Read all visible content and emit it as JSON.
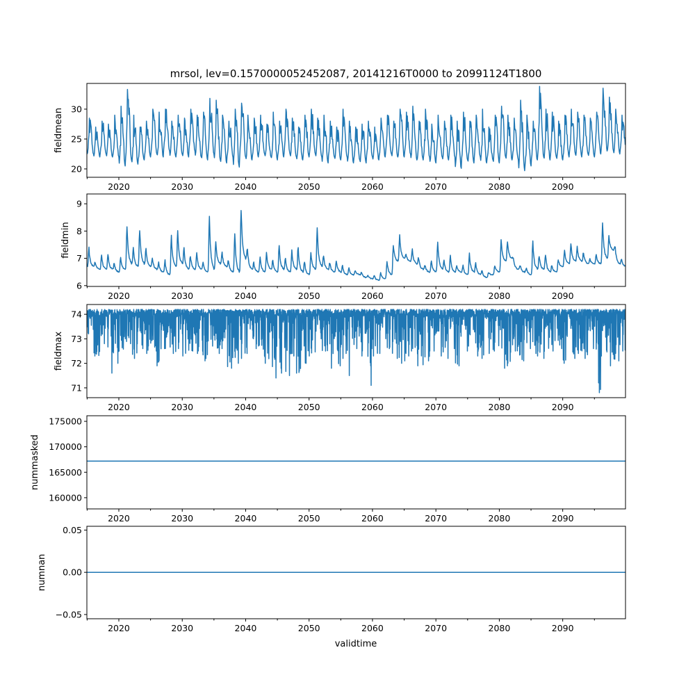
{
  "chart_data": {
    "type": "line",
    "title": "mrsol, lev=0.1570000052452087, 20141216T0000 to 20991124T1800",
    "xlabel": "validtime",
    "xlim": [
      2014.96,
      2099.9
    ],
    "x_ticks": [
      "2020",
      "2030",
      "2040",
      "2050",
      "2060",
      "2070",
      "2080",
      "2090"
    ],
    "x_tick_values": [
      2020,
      2030,
      2040,
      2050,
      2060,
      2070,
      2080,
      2090
    ],
    "x_minor_tick_values": [
      2015,
      2025,
      2035,
      2045,
      2055,
      2065,
      2075,
      2085,
      2095
    ],
    "series_color": "#1f77b4",
    "panels": [
      {
        "name": "fieldmean",
        "ylabel": "fieldmean",
        "ylim": [
          18.6,
          34.3
        ],
        "y_ticks": [
          "20",
          "25",
          "30"
        ],
        "y_tick_values": [
          20,
          25,
          30
        ],
        "note": "annual [peak, trough] values, 2015-2099",
        "start_year": 2015,
        "annual_peak_trough": [
          [
            28.5,
            22.5
          ],
          [
            27,
            22
          ],
          [
            28,
            22.5
          ],
          [
            27.5,
            22
          ],
          [
            29,
            22
          ],
          [
            30.5,
            20.5
          ],
          [
            33.3,
            21.5
          ],
          [
            29,
            20.8
          ],
          [
            27,
            21.5
          ],
          [
            28,
            22
          ],
          [
            30,
            22.5
          ],
          [
            29.5,
            22
          ],
          [
            30,
            23
          ],
          [
            28,
            22
          ],
          [
            29,
            22.5
          ],
          [
            28.5,
            22
          ],
          [
            30,
            23
          ],
          [
            29,
            22
          ],
          [
            29.5,
            21.5
          ],
          [
            31.8,
            22.5
          ],
          [
            31.5,
            21.5
          ],
          [
            29,
            21
          ],
          [
            28,
            22
          ],
          [
            30,
            20.3
          ],
          [
            31,
            22
          ],
          [
            29,
            21.5
          ],
          [
            28.5,
            22
          ],
          [
            29,
            22.5
          ],
          [
            27.5,
            22
          ],
          [
            29.5,
            21.5
          ],
          [
            28,
            22
          ],
          [
            30,
            22.5
          ],
          [
            28.5,
            22
          ],
          [
            27,
            21.5
          ],
          [
            29,
            22
          ],
          [
            30,
            22.5
          ],
          [
            28.5,
            22
          ],
          [
            29,
            21
          ],
          [
            28,
            22
          ],
          [
            27,
            21.5
          ],
          [
            30,
            22
          ],
          [
            28,
            21
          ],
          [
            27,
            21.5
          ],
          [
            27.5,
            21
          ],
          [
            28,
            22
          ],
          [
            27,
            21.5
          ],
          [
            28.5,
            22
          ],
          [
            29,
            22.5
          ],
          [
            28,
            22
          ],
          [
            30,
            22
          ],
          [
            29.5,
            22.5
          ],
          [
            30.5,
            21.5
          ],
          [
            28,
            21.5
          ],
          [
            30,
            22
          ],
          [
            27.5,
            21
          ],
          [
            29,
            22
          ],
          [
            28,
            21.5
          ],
          [
            29,
            22
          ],
          [
            28,
            20.1
          ],
          [
            29.5,
            21.5
          ],
          [
            28,
            21
          ],
          [
            29,
            22
          ],
          [
            30,
            21
          ],
          [
            27,
            21.5
          ],
          [
            29,
            21
          ],
          [
            30.5,
            22
          ],
          [
            29,
            21.5
          ],
          [
            28.5,
            21.5
          ],
          [
            31.5,
            19.7
          ],
          [
            29,
            20.5
          ],
          [
            28,
            21.5
          ],
          [
            33.8,
            22
          ],
          [
            30,
            21.5
          ],
          [
            29.5,
            22
          ],
          [
            28,
            21.5
          ],
          [
            29,
            22
          ],
          [
            30,
            22.5
          ],
          [
            29.5,
            22
          ],
          [
            29,
            22.5
          ],
          [
            28.5,
            22
          ],
          [
            29.5,
            22.5
          ],
          [
            33.5,
            23
          ],
          [
            32,
            23
          ],
          [
            30,
            22.5
          ],
          [
            29,
            23
          ]
        ]
      },
      {
        "name": "fieldmin",
        "ylabel": "fieldmin",
        "ylim": [
          5.97,
          9.36
        ],
        "y_ticks": [
          "6",
          "7",
          "8",
          "9"
        ],
        "y_tick_values": [
          6,
          7,
          8,
          9
        ],
        "start_year": 2015,
        "annual_peak_trough": [
          [
            7.5,
            6.7
          ],
          [
            6.9,
            6.6
          ],
          [
            7.2,
            6.6
          ],
          [
            7.3,
            6.6
          ],
          [
            6.9,
            6.5
          ],
          [
            7.1,
            6.6
          ],
          [
            8.5,
            6.8
          ],
          [
            7.5,
            6.7
          ],
          [
            8.3,
            6.8
          ],
          [
            7.5,
            6.7
          ],
          [
            7.1,
            6.6
          ],
          [
            6.9,
            6.5
          ],
          [
            7.0,
            6.4
          ],
          [
            8.0,
            6.7
          ],
          [
            8.2,
            6.8
          ],
          [
            7.5,
            6.6
          ],
          [
            7.2,
            6.6
          ],
          [
            7.3,
            6.6
          ],
          [
            6.9,
            6.5
          ],
          [
            8.9,
            6.6
          ],
          [
            7.8,
            6.8
          ],
          [
            7.3,
            6.7
          ],
          [
            7.0,
            6.5
          ],
          [
            8.2,
            6.5
          ],
          [
            9.2,
            7.0
          ],
          [
            7.5,
            6.6
          ],
          [
            6.9,
            6.5
          ],
          [
            7.2,
            6.5
          ],
          [
            7.3,
            6.6
          ],
          [
            7.0,
            6.5
          ],
          [
            7.6,
            6.6
          ],
          [
            7.1,
            6.5
          ],
          [
            7.4,
            6.6
          ],
          [
            7.6,
            6.5
          ],
          [
            7.0,
            6.4
          ],
          [
            7.3,
            6.6
          ],
          [
            8.4,
            6.7
          ],
          [
            7.2,
            6.6
          ],
          [
            6.9,
            6.5
          ],
          [
            7.0,
            6.5
          ],
          [
            6.8,
            6.4
          ],
          [
            6.7,
            6.4
          ],
          [
            6.6,
            6.4
          ],
          [
            6.5,
            6.3
          ],
          [
            6.4,
            6.25
          ],
          [
            6.4,
            6.2
          ],
          [
            6.5,
            6.25
          ],
          [
            7.0,
            6.4
          ],
          [
            7.6,
            6.9
          ],
          [
            8.0,
            7.0
          ],
          [
            7.2,
            6.9
          ],
          [
            7.4,
            6.8
          ],
          [
            7.1,
            6.6
          ],
          [
            6.8,
            6.5
          ],
          [
            7.0,
            6.5
          ],
          [
            7.8,
            6.6
          ],
          [
            7.0,
            6.5
          ],
          [
            7.2,
            6.5
          ],
          [
            6.8,
            6.5
          ],
          [
            6.8,
            6.4
          ],
          [
            7.3,
            6.5
          ],
          [
            6.9,
            6.4
          ],
          [
            6.6,
            6.3
          ],
          [
            6.5,
            6.4
          ],
          [
            6.8,
            6.5
          ],
          [
            7.8,
            6.9
          ],
          [
            7.7,
            7.0
          ],
          [
            7.0,
            6.6
          ],
          [
            6.8,
            6.5
          ],
          [
            6.7,
            6.4
          ],
          [
            7.8,
            6.6
          ],
          [
            7.2,
            6.6
          ],
          [
            7.3,
            6.5
          ],
          [
            6.8,
            6.5
          ],
          [
            7.0,
            6.7
          ],
          [
            7.4,
            6.8
          ],
          [
            7.7,
            6.9
          ],
          [
            7.5,
            6.9
          ],
          [
            7.3,
            6.8
          ],
          [
            7.0,
            6.8
          ],
          [
            7.2,
            6.8
          ],
          [
            8.6,
            7.0
          ],
          [
            7.9,
            7.3
          ],
          [
            7.5,
            6.8
          ],
          [
            7.0,
            6.7
          ]
        ]
      },
      {
        "name": "fieldmax",
        "ylabel": "fieldmax",
        "ylim": [
          70.6,
          74.4
        ],
        "y_ticks": [
          "71",
          "72",
          "73",
          "74"
        ],
        "y_tick_values": [
          71,
          72,
          73,
          74
        ],
        "start_year": 2015,
        "upper_value": 74.2,
        "annual_min": [
          73.2,
          72.3,
          72.8,
          71.6,
          72.0,
          72.5,
          72.8,
          72.2,
          72.6,
          72.4,
          72.5,
          71.9,
          72.6,
          72.4,
          72.6,
          72.3,
          72.5,
          72.4,
          72.1,
          72.7,
          72.4,
          72.6,
          71.8,
          72.0,
          72.2,
          72.4,
          72.6,
          72.3,
          72.0,
          71.4,
          71.6,
          71.5,
          72.3,
          71.6,
          72.0,
          72.3,
          73.0,
          72.5,
          71.8,
          71.9,
          72.2,
          71.5,
          72.6,
          72.3,
          71.1,
          72.3,
          72.4,
          72.6,
          72.2,
          72.0,
          72.1,
          72.5,
          71.9,
          72.1,
          72.5,
          72.3,
          72.2,
          72.6,
          71.9,
          72.5,
          72.7,
          72.3,
          72.2,
          72.4,
          72.5,
          71.8,
          71.9,
          72.5,
          72.1,
          72.6,
          72.4,
          72.3,
          72.2,
          72.5,
          72.6,
          72.0,
          72.2,
          72.4,
          72.2,
          72.6,
          70.8,
          72.3,
          71.9,
          72.1,
          72.5
        ]
      },
      {
        "name": "nummasked",
        "ylabel": "nummasked",
        "ylim": [
          157800,
          176100
        ],
        "y_ticks": [
          "160000",
          "165000",
          "170000",
          "175000"
        ],
        "y_tick_values": [
          160000,
          165000,
          170000,
          175000
        ],
        "constant_value": 167200
      },
      {
        "name": "numnan",
        "ylabel": "numnan",
        "ylim": [
          -0.055,
          0.0545
        ],
        "y_ticks": [
          "−0.05",
          "0.00",
          "0.05"
        ],
        "y_tick_values": [
          -0.05,
          0,
          0.05
        ],
        "constant_value": 0
      }
    ]
  }
}
